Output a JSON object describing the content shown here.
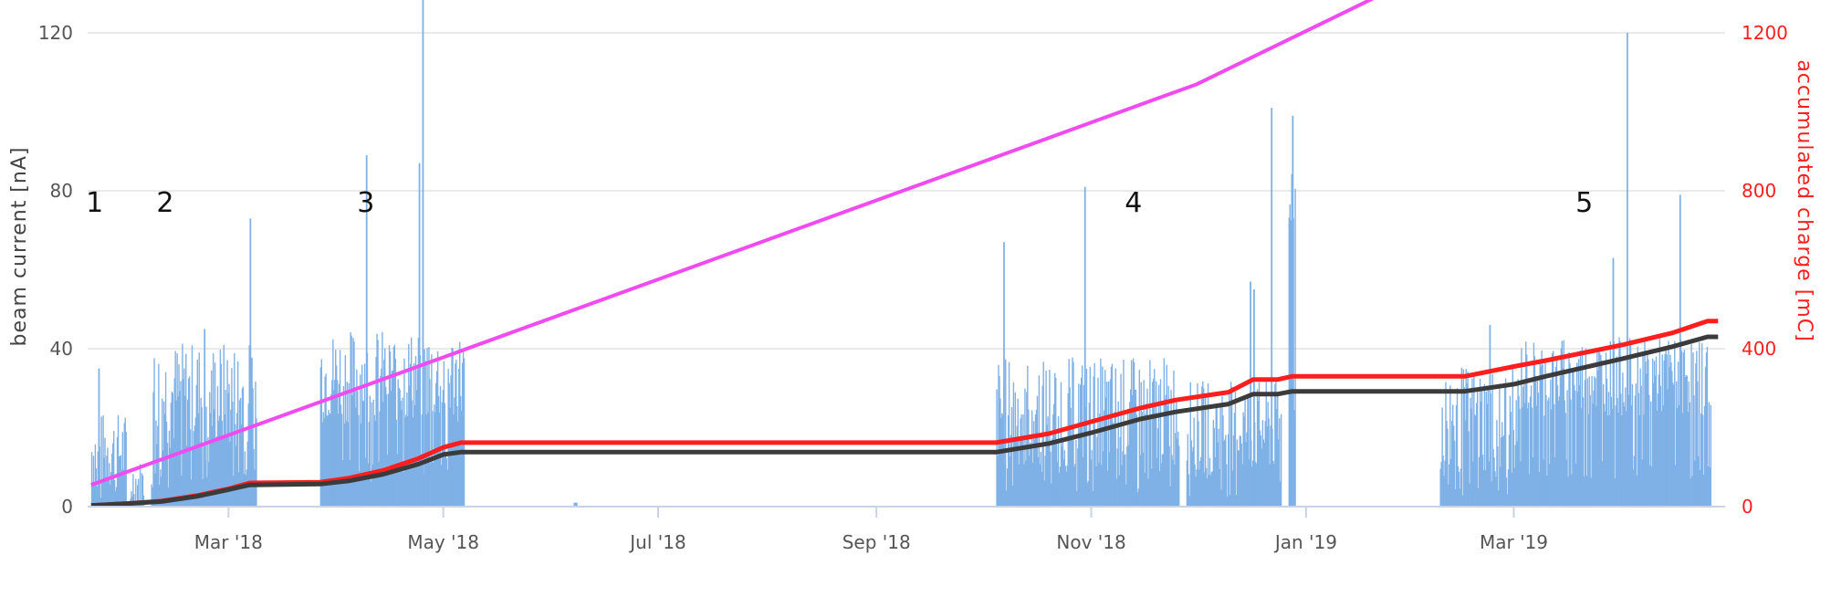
{
  "chart_data": {
    "type": "bar",
    "y_left": {
      "label": "beam current [nA]",
      "ticks": [
        0,
        40,
        80,
        120
      ],
      "range": [
        0,
        120
      ]
    },
    "y_right": {
      "label": "accumulated charge [mC]",
      "ticks": [
        0,
        400,
        800,
        1200
      ],
      "range": [
        0,
        1200
      ]
    },
    "x_axis": {
      "type": "date",
      "range": [
        "2018-01-20",
        "2019-04-30"
      ],
      "ticks": [
        {
          "date": "2018-03-01",
          "label": "Mar '18"
        },
        {
          "date": "2018-05-01",
          "label": "May '18"
        },
        {
          "date": "2018-07-01",
          "label": "Jul '18"
        },
        {
          "date": "2018-09-01",
          "label": "Sep '18"
        },
        {
          "date": "2018-11-01",
          "label": "Nov '18"
        },
        {
          "date": "2019-01-01",
          "label": "Jan '19"
        },
        {
          "date": "2019-03-01",
          "label": "Mar '19"
        }
      ]
    },
    "grid": true,
    "annotations": [
      {
        "text": "1",
        "date": "2018-01-22",
        "y": 77
      },
      {
        "text": "2",
        "date": "2018-02-11",
        "y": 77
      },
      {
        "text": "3",
        "date": "2018-04-09",
        "y": 77
      },
      {
        "text": "4",
        "date": "2018-11-13",
        "y": 77
      },
      {
        "text": "5",
        "date": "2019-03-21",
        "y": 77
      }
    ],
    "series": [
      {
        "type": "bar",
        "axis": "left",
        "color": "#7fb1e6",
        "segments": [
          {
            "start": "2018-01-21",
            "end": "2018-01-30",
            "base": 14,
            "amp": 10,
            "peaks": [
              {
                "date": "2018-01-23",
                "value": 35
              }
            ]
          },
          {
            "start": "2018-02-01",
            "end": "2018-02-04",
            "base": 6,
            "amp": 6,
            "peaks": []
          },
          {
            "start": "2018-02-07",
            "end": "2018-03-08",
            "base": 28,
            "amp": 14,
            "peaks": [
              {
                "date": "2018-03-07",
                "value": 73
              },
              {
                "date": "2018-02-22",
                "value": 45
              }
            ]
          },
          {
            "start": "2018-03-27",
            "end": "2018-05-06",
            "base": 33,
            "amp": 12,
            "peaks": [
              {
                "date": "2018-04-09",
                "value": 89
              },
              {
                "date": "2018-04-25",
                "value": 130
              },
              {
                "date": "2018-04-24",
                "value": 87
              }
            ]
          },
          {
            "start": "2018-06-07",
            "end": "2018-06-07",
            "base": 1,
            "amp": 0,
            "peaks": []
          },
          {
            "start": "2018-10-05",
            "end": "2018-11-25",
            "base": 24,
            "amp": 14,
            "peaks": [
              {
                "date": "2018-10-07",
                "value": 67
              },
              {
                "date": "2018-10-30",
                "value": 81
              }
            ]
          },
          {
            "start": "2018-11-28",
            "end": "2018-12-24",
            "base": 20,
            "amp": 12,
            "peaks": [
              {
                "date": "2018-12-16",
                "value": 57
              },
              {
                "date": "2018-12-22",
                "value": 101
              },
              {
                "date": "2018-12-17",
                "value": 55
              }
            ]
          },
          {
            "start": "2018-12-27",
            "end": "2018-12-28",
            "base": 80,
            "amp": 10,
            "peaks": [
              {
                "date": "2018-12-28",
                "value": 99
              }
            ]
          },
          {
            "start": "2019-02-08",
            "end": "2019-03-02",
            "base": 22,
            "amp": 14,
            "peaks": [
              {
                "date": "2019-02-22",
                "value": 46
              }
            ]
          },
          {
            "start": "2019-03-03",
            "end": "2019-04-25",
            "base": 33,
            "amp": 10,
            "peaks": [
              {
                "date": "2019-03-29",
                "value": 63
              },
              {
                "date": "2019-04-02",
                "value": 120
              },
              {
                "date": "2019-04-17",
                "value": 79
              }
            ]
          }
        ]
      },
      {
        "type": "line",
        "axis": "right",
        "color": "#ff1e1e",
        "points": [
          [
            "2018-01-21",
            3
          ],
          [
            "2018-02-01",
            8
          ],
          [
            "2018-02-10",
            14
          ],
          [
            "2018-02-20",
            28
          ],
          [
            "2018-03-01",
            45
          ],
          [
            "2018-03-07",
            60
          ],
          [
            "2018-03-27",
            62
          ],
          [
            "2018-04-04",
            72
          ],
          [
            "2018-04-14",
            92
          ],
          [
            "2018-04-24",
            122
          ],
          [
            "2018-05-01",
            150
          ],
          [
            "2018-05-06",
            162
          ],
          [
            "2018-10-05",
            162
          ],
          [
            "2018-10-20",
            185
          ],
          [
            "2018-11-01",
            215
          ],
          [
            "2018-11-15",
            250
          ],
          [
            "2018-11-25",
            270
          ],
          [
            "2018-12-10",
            290
          ],
          [
            "2018-12-17",
            322
          ],
          [
            "2018-12-24",
            322
          ],
          [
            "2018-12-28",
            330
          ],
          [
            "2019-02-15",
            330
          ],
          [
            "2019-03-01",
            355
          ],
          [
            "2019-03-10",
            370
          ],
          [
            "2019-04-01",
            410
          ],
          [
            "2019-04-15",
            440
          ],
          [
            "2019-04-25",
            470
          ],
          [
            "2019-04-28",
            470
          ]
        ]
      },
      {
        "type": "line",
        "axis": "right",
        "color": "#3b3b3b",
        "points": [
          [
            "2018-01-21",
            3
          ],
          [
            "2018-02-01",
            8
          ],
          [
            "2018-02-10",
            13
          ],
          [
            "2018-02-20",
            26
          ],
          [
            "2018-03-01",
            43
          ],
          [
            "2018-03-07",
            55
          ],
          [
            "2018-03-27",
            57
          ],
          [
            "2018-04-04",
            65
          ],
          [
            "2018-04-14",
            82
          ],
          [
            "2018-04-24",
            108
          ],
          [
            "2018-05-01",
            132
          ],
          [
            "2018-05-06",
            138
          ],
          [
            "2018-10-05",
            138
          ],
          [
            "2018-10-20",
            160
          ],
          [
            "2018-11-01",
            187
          ],
          [
            "2018-11-15",
            222
          ],
          [
            "2018-11-25",
            240
          ],
          [
            "2018-12-10",
            260
          ],
          [
            "2018-12-17",
            285
          ],
          [
            "2018-12-24",
            285
          ],
          [
            "2018-12-28",
            292
          ],
          [
            "2019-02-15",
            292
          ],
          [
            "2019-03-01",
            310
          ],
          [
            "2019-03-10",
            330
          ],
          [
            "2019-04-01",
            375
          ],
          [
            "2019-04-15",
            405
          ],
          [
            "2019-04-25",
            430
          ],
          [
            "2019-04-28",
            430
          ]
        ]
      },
      {
        "type": "line",
        "axis": "right",
        "color": "#f04bf0",
        "points": [
          [
            "2018-01-21",
            55
          ],
          [
            "2018-12-01",
            1070
          ],
          [
            "2019-01-23",
            1300
          ]
        ]
      }
    ]
  }
}
